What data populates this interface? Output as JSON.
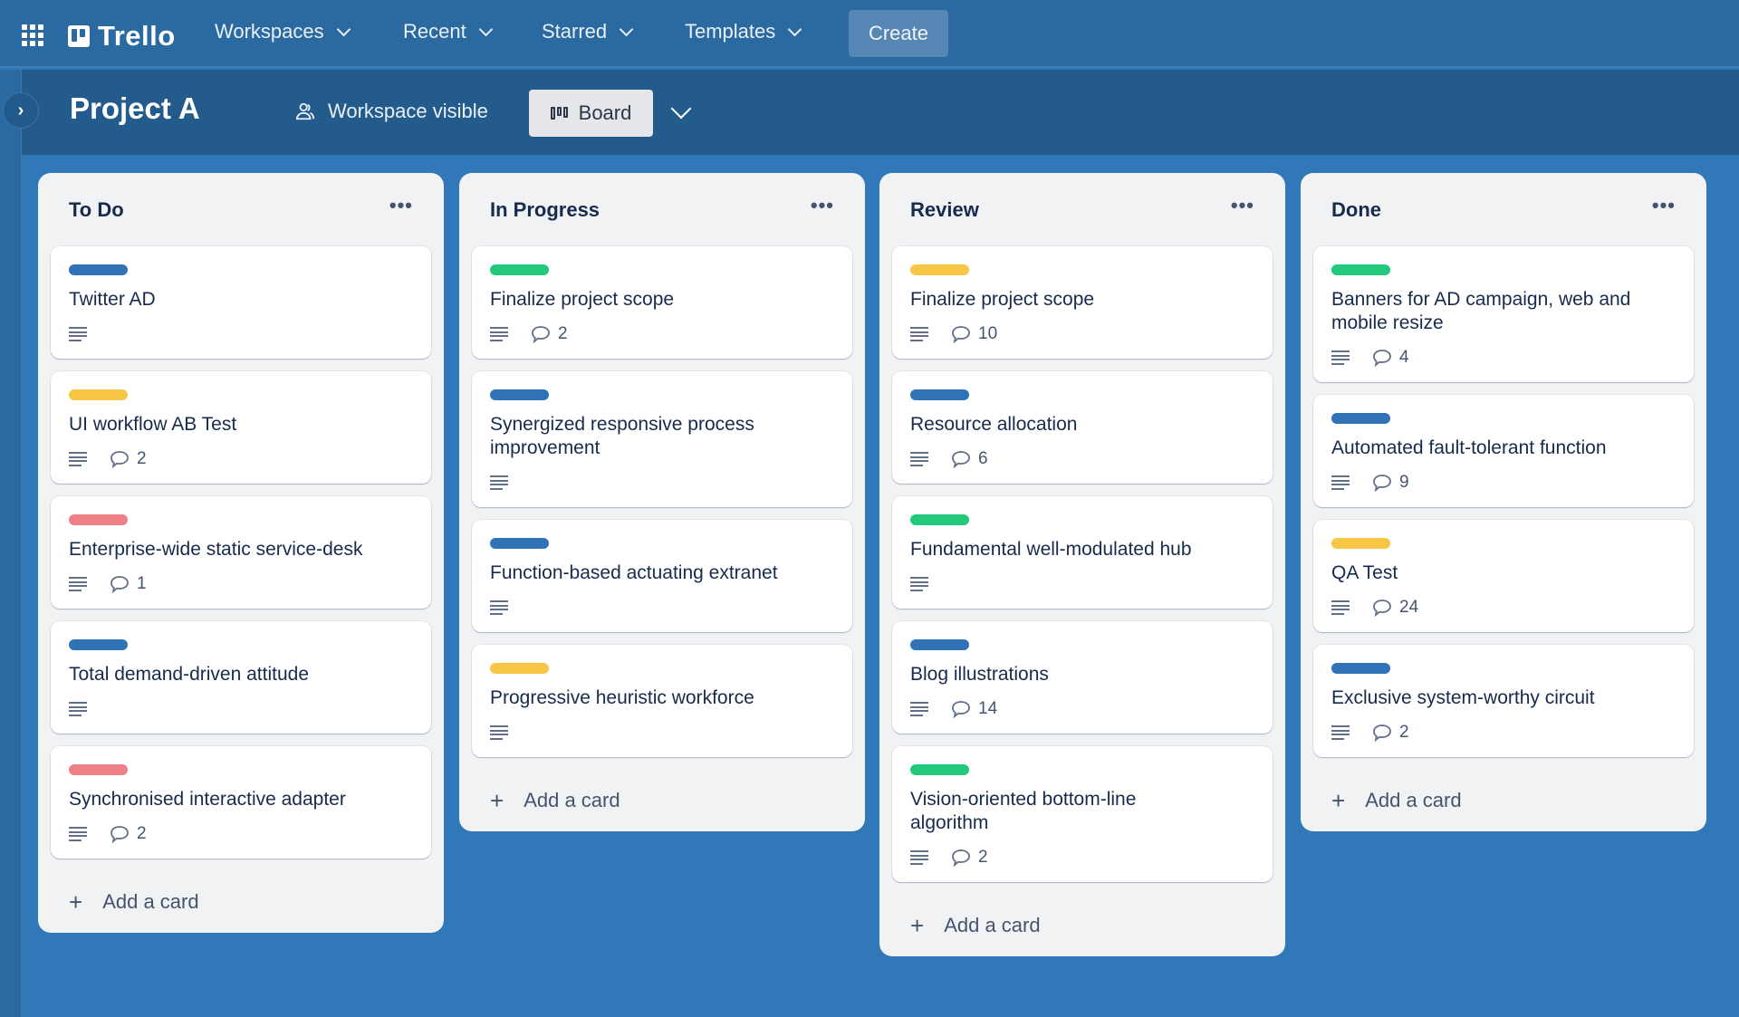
{
  "topnav": {
    "app_name": "Trello",
    "menus": [
      {
        "label": "Workspaces"
      },
      {
        "label": "Recent"
      },
      {
        "label": "Starred"
      },
      {
        "label": "Templates"
      }
    ],
    "create_label": "Create"
  },
  "board": {
    "title": "Project A",
    "visibility": "Workspace visible",
    "view_label": "Board"
  },
  "colors": {
    "blue": "#2f72b8",
    "green": "#22c97a",
    "yellow": "#f6c644",
    "red": "#ef7f86"
  },
  "lists": [
    {
      "title": "To Do",
      "add_label": "Add a card",
      "cards": [
        {
          "label_color": "#2f72b8",
          "title": "Twitter AD",
          "comments": ""
        },
        {
          "label_color": "#f6c644",
          "title": "UI workflow AB Test",
          "comments": "2"
        },
        {
          "label_color": "#ef7f86",
          "title": "Enterprise-wide static service-desk",
          "comments": "1"
        },
        {
          "label_color": "#2f72b8",
          "title": "Total demand-driven attitude",
          "comments": ""
        },
        {
          "label_color": "#ef7f86",
          "title": "Synchronised interactive adapter",
          "comments": "2"
        }
      ]
    },
    {
      "title": "In Progress",
      "add_label": "Add a card",
      "cards": [
        {
          "label_color": "#22c97a",
          "title": "Finalize project scope",
          "comments": "2"
        },
        {
          "label_color": "#2f72b8",
          "title": "Synergized responsive process improvement",
          "comments": ""
        },
        {
          "label_color": "#2f72b8",
          "title": "Function-based actuating extranet",
          "comments": ""
        },
        {
          "label_color": "#f6c644",
          "title": "Progressive heuristic workforce",
          "comments": ""
        }
      ]
    },
    {
      "title": "Review",
      "add_label": "Add a card",
      "cards": [
        {
          "label_color": "#f6c644",
          "title": "Finalize project scope",
          "comments": "10"
        },
        {
          "label_color": "#2f72b8",
          "title": "Resource allocation",
          "comments": "6"
        },
        {
          "label_color": "#22c97a",
          "title": "Fundamental well-modulated hub",
          "comments": ""
        },
        {
          "label_color": "#2f72b8",
          "title": "Blog illustrations",
          "comments": "14"
        },
        {
          "label_color": "#22c97a",
          "title": "Vision-oriented bottom-line algorithm",
          "comments": "2"
        }
      ]
    },
    {
      "title": "Done",
      "add_label": "Add a card",
      "cards": [
        {
          "label_color": "#22c97a",
          "title": "Banners for AD campaign, web and mobile resize",
          "comments": "4"
        },
        {
          "label_color": "#2f72b8",
          "title": "Automated fault-tolerant function",
          "comments": "9"
        },
        {
          "label_color": "#f6c644",
          "title": "QA Test",
          "comments": "24"
        },
        {
          "label_color": "#2f72b8",
          "title": "Exclusive system-worthy circuit",
          "comments": "2"
        }
      ]
    }
  ]
}
